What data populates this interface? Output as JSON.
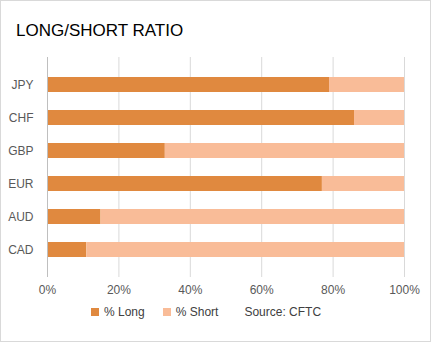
{
  "chart_data": {
    "type": "bar",
    "title": "LONG/SHORT RATIO",
    "orientation": "horizontal",
    "stacked": true,
    "categories": [
      "JPY",
      "CHF",
      "GBP",
      "EUR",
      "AUD",
      "CAD"
    ],
    "series": [
      {
        "name": "% Long",
        "color": "#e0893f",
        "values": [
          79,
          86,
          33,
          77,
          15,
          11
        ]
      },
      {
        "name": "% Short",
        "color": "#f9bc98",
        "values": [
          21,
          14,
          67,
          23,
          85,
          89
        ]
      }
    ],
    "xlim": [
      0,
      100
    ],
    "xticks": [
      {
        "value": 0,
        "label": "0%"
      },
      {
        "value": 20,
        "label": "20%"
      },
      {
        "value": 40,
        "label": "40%"
      },
      {
        "value": 60,
        "label": "60%"
      },
      {
        "value": 80,
        "label": "80%"
      },
      {
        "value": 100,
        "label": "100%"
      }
    ],
    "grid": true,
    "legend": "bottom",
    "annotations": [
      "Source: CFTC"
    ]
  }
}
